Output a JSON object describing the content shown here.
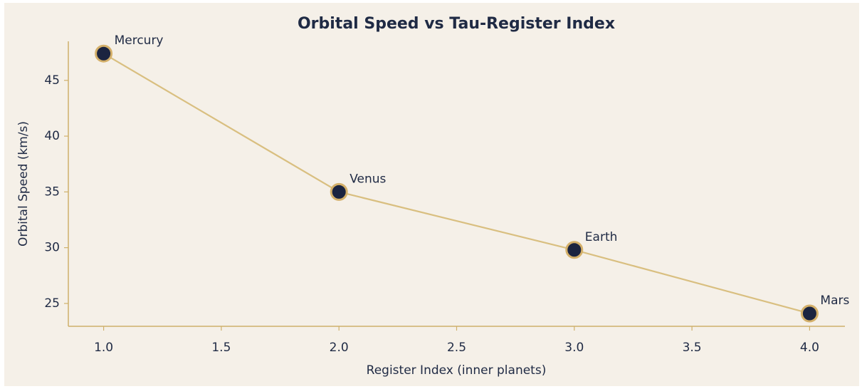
{
  "chart_data": {
    "type": "line",
    "title": "Orbital Speed vs Tau-Register Index",
    "xlabel": "Register Index (inner planets)",
    "ylabel": "Orbital Speed (km/s)",
    "x": [
      1,
      2,
      3,
      4
    ],
    "series": [
      {
        "name": "Orbital Speed",
        "color": "#d9bf80",
        "marker_color": "#1b2440",
        "marker_edge": "#d4b06a",
        "values": [
          47.4,
          35.0,
          29.8,
          24.1
        ]
      }
    ],
    "point_labels": [
      "Mercury",
      "Venus",
      "Earth",
      "Mars"
    ],
    "xlim": [
      0.85,
      4.15
    ],
    "xticks": [
      {
        "value": 1,
        "label": "1.0"
      },
      1.5,
      {
        "value": 2,
        "label": "2.0"
      },
      2.5,
      {
        "value": 3,
        "label": "3.0"
      },
      3.5,
      {
        "value": 4,
        "label": "4.0"
      }
    ],
    "ylim": [
      22.95,
      48.5
    ],
    "yticks": [
      25,
      30,
      35,
      40,
      45
    ],
    "grid": false
  }
}
